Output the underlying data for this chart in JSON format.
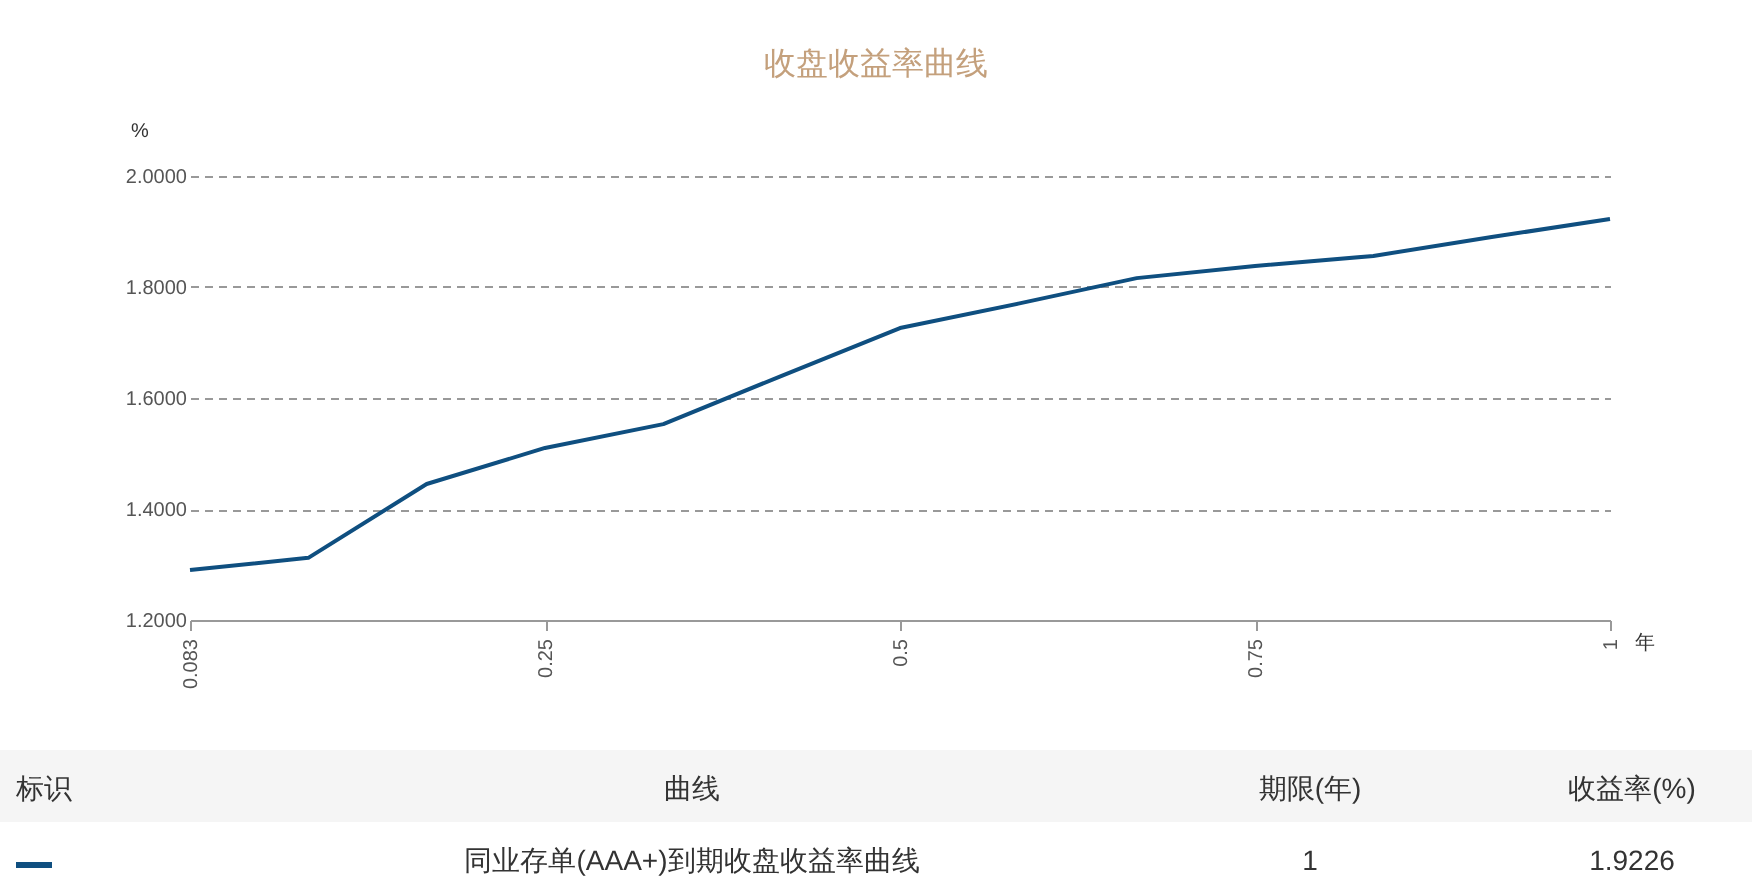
{
  "chart_data": {
    "type": "line",
    "title": "收盘收益率曲线",
    "ylabel": "%",
    "xlabel": "年",
    "categories": [
      "0.083",
      null,
      null,
      "0.25",
      null,
      null,
      "0.5",
      null,
      null,
      "0.75",
      null,
      null,
      "1"
    ],
    "series": [
      {
        "name": "同业存单(AAA+)到期收盘收益率曲线",
        "color": "#0f4f80",
        "values": [
          1.29,
          1.312,
          1.445,
          1.51,
          1.553,
          1.64,
          1.726,
          1.77,
          1.816,
          1.838,
          1.856,
          1.89,
          1.9226
        ]
      }
    ],
    "ylim": [
      1.2,
      2.0
    ],
    "yticks": [
      {
        "value": 1.2,
        "label": "1.2000"
      },
      {
        "value": 1.4,
        "label": "1.4000"
      },
      {
        "value": 1.6,
        "label": "1.6000"
      },
      {
        "value": 1.8,
        "label": "1.8000"
      },
      {
        "value": 2.0,
        "label": "2.0000"
      }
    ],
    "grid": "y",
    "line_style": "solid",
    "marker": "none",
    "legend": false,
    "annotations": [
      "标识",
      "曲线",
      "期限(年)",
      "收益率(%)",
      "1",
      "1.9226"
    ]
  }
}
